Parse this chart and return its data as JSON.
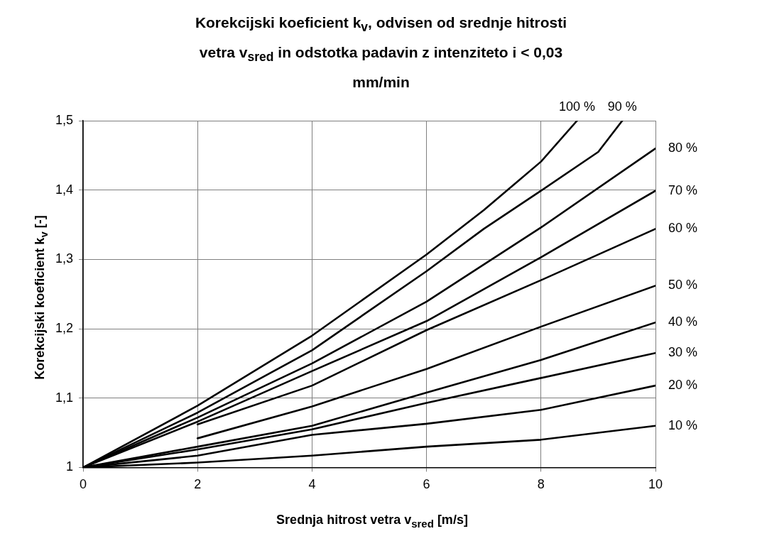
{
  "chart_data": {
    "type": "line",
    "title": "Korekcijski koeficient k$_{v}$, odvisen od srednje hitrosti vetra v$_{sred}$ in odstotka padavin z intenziteto i < 0,03 mm/min",
    "xlabel": "Srednja hitrost vetra v$_{sred}$ [m/s]",
    "ylabel": "Korekcijski koeficient k$_{v}$ [-]",
    "xlim": [
      0,
      10
    ],
    "xticks": [
      0,
      2,
      4,
      6,
      8,
      10
    ],
    "ylim": [
      1,
      1.5
    ],
    "yticks": [
      1,
      {
        "value": 1.1,
        "label": "1,1"
      },
      {
        "value": 1.2,
        "label": "1,2"
      },
      {
        "value": 1.3,
        "label": "1,3"
      },
      {
        "value": 1.4,
        "label": "1,4"
      },
      {
        "value": 1.5,
        "label": "1,5"
      }
    ],
    "grid": true,
    "legend": false,
    "marker": "none",
    "line_style": "solid",
    "series": [
      {
        "name": "100 %",
        "color": "#000000",
        "x": [
          0,
          2,
          4,
          6,
          7,
          8,
          8.63
        ],
        "values": [
          1,
          1.089,
          1.19,
          1.307,
          1.371,
          1.441,
          1.5
        ]
      },
      {
        "name": "90 %",
        "color": "#000000",
        "x": [
          0,
          2,
          4,
          6,
          7,
          8,
          9,
          9.42
        ],
        "values": [
          1,
          1.079,
          1.169,
          1.283,
          1.344,
          1.399,
          1.455,
          1.5
        ]
      },
      {
        "name": "80 %",
        "color": "#000000",
        "x": [
          0,
          2,
          4,
          6,
          8,
          10
        ],
        "values": [
          1,
          1.072,
          1.15,
          1.239,
          1.346,
          1.46
        ]
      },
      {
        "name": "70 %",
        "color": "#000000",
        "x": [
          0,
          2,
          4,
          6,
          8,
          10
        ],
        "values": [
          1,
          1.066,
          1.139,
          1.211,
          1.303,
          1.399
        ]
      },
      {
        "name": "60 %",
        "color": "#000000",
        "x": [
          2,
          4,
          6,
          8,
          10
        ],
        "values": [
          1.062,
          1.118,
          1.198,
          1.27,
          1.344
        ]
      },
      {
        "name": "50 %",
        "color": "#000000",
        "x": [
          2,
          4,
          6,
          8,
          10
        ],
        "values": [
          1.042,
          1.088,
          1.142,
          1.203,
          1.262
        ]
      },
      {
        "name": "40 %",
        "color": "#000000",
        "x": [
          0,
          2,
          4,
          6,
          8,
          10
        ],
        "values": [
          1,
          1.03,
          1.06,
          1.108,
          1.155,
          1.209
        ]
      },
      {
        "name": "30 %",
        "color": "#000000",
        "x": [
          0,
          2,
          4,
          6,
          8,
          10
        ],
        "values": [
          1,
          1.026,
          1.055,
          1.093,
          1.129,
          1.165
        ]
      },
      {
        "name": "20 %",
        "color": "#000000",
        "x": [
          0,
          2,
          4,
          6,
          8,
          10
        ],
        "values": [
          1,
          1.017,
          1.047,
          1.063,
          1.083,
          1.118
        ]
      },
      {
        "name": "10 %",
        "color": "#000000",
        "x": [
          0,
          2,
          4,
          6,
          8,
          10
        ],
        "values": [
          1,
          1.007,
          1.017,
          1.03,
          1.04,
          1.06
        ]
      }
    ]
  }
}
